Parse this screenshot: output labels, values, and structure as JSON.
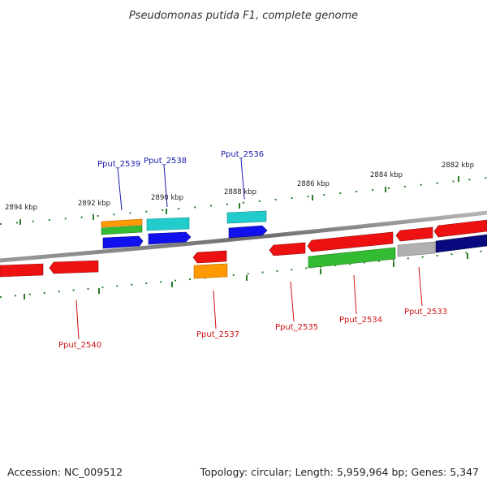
{
  "title": "Pseudomonas putida F1, complete genome",
  "accession": "Accession: NC_009512",
  "summary": "Topology: circular; Length: 5,959,964 bp; Genes: 5,347",
  "colors": {
    "backbone": "#7d7d7d",
    "tick": "#2a7d2a",
    "upper_label": "#1a1aaa",
    "lower_label": "#cc1111",
    "red": "#ee1111",
    "orange": "#ff9900",
    "green": "#33bb33",
    "cyan": "#22cccc",
    "blue": "#1111ee",
    "gray": "#b0b0b0",
    "navy": "#0a0a80"
  },
  "scale_labels": [
    "2894 kbp",
    "2892 kbp",
    "2890 kbp",
    "2888 kbp",
    "2886 kbp",
    "2884 kbp",
    "2882 kbp"
  ],
  "upper_labels": [
    "Pput_2539",
    "Pput_2538",
    "Pput_2536"
  ],
  "lower_labels": [
    "Pput_2540",
    "Pput_2537",
    "Pput_2535",
    "Pput_2534",
    "Pput_2533"
  ]
}
